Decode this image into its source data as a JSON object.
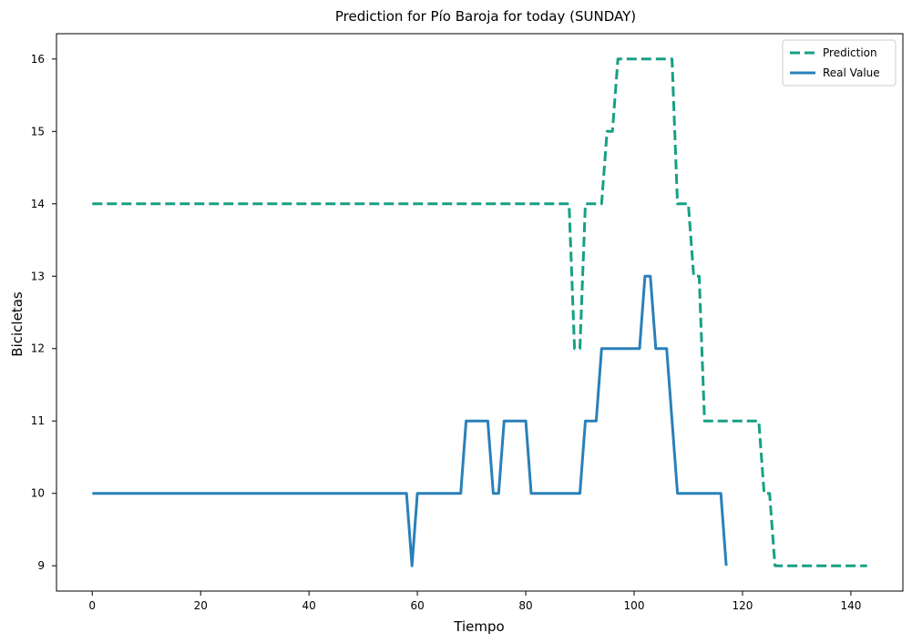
{
  "chart_data": {
    "type": "line",
    "title": "Prediction for Pío Baroja for today (SUNDAY)",
    "xlabel": "Tiempo",
    "ylabel": "Bicicletas",
    "xlim": [
      -6.6,
      149.6
    ],
    "ylim": [
      8.65,
      16.35
    ],
    "xticks": [
      0,
      20,
      40,
      60,
      80,
      100,
      120,
      140
    ],
    "yticks": [
      9,
      10,
      11,
      12,
      13,
      14,
      15,
      16
    ],
    "grid": false,
    "legend_position": "top-right",
    "series": [
      {
        "name": "Prediction",
        "color": "#16a085",
        "style": "dashed",
        "points": [
          [
            0,
            14
          ],
          [
            88,
            14
          ],
          [
            89,
            12
          ],
          [
            90,
            12
          ],
          [
            91,
            14
          ],
          [
            94,
            14
          ],
          [
            95,
            15
          ],
          [
            96,
            15
          ],
          [
            97,
            16
          ],
          [
            107,
            16
          ],
          [
            108,
            14
          ],
          [
            110,
            14
          ],
          [
            111,
            13
          ],
          [
            112,
            13
          ],
          [
            113,
            11
          ],
          [
            123,
            11
          ],
          [
            124,
            10
          ],
          [
            125,
            10
          ],
          [
            126,
            9
          ],
          [
            143,
            9
          ]
        ]
      },
      {
        "name": "Real Value",
        "color": "#2980b9",
        "style": "solid",
        "points": [
          [
            0,
            10
          ],
          [
            58,
            10
          ],
          [
            59,
            9
          ],
          [
            60,
            10
          ],
          [
            68,
            10
          ],
          [
            69,
            11
          ],
          [
            73,
            11
          ],
          [
            74,
            10
          ],
          [
            75,
            10
          ],
          [
            76,
            11
          ],
          [
            80,
            11
          ],
          [
            81,
            10
          ],
          [
            90,
            10
          ],
          [
            91,
            11
          ],
          [
            93,
            11
          ],
          [
            94,
            12
          ],
          [
            101,
            12
          ],
          [
            102,
            13
          ],
          [
            103,
            13
          ],
          [
            104,
            12
          ],
          [
            106,
            12
          ],
          [
            108,
            10
          ],
          [
            116,
            10
          ],
          [
            117,
            9
          ]
        ]
      }
    ]
  }
}
